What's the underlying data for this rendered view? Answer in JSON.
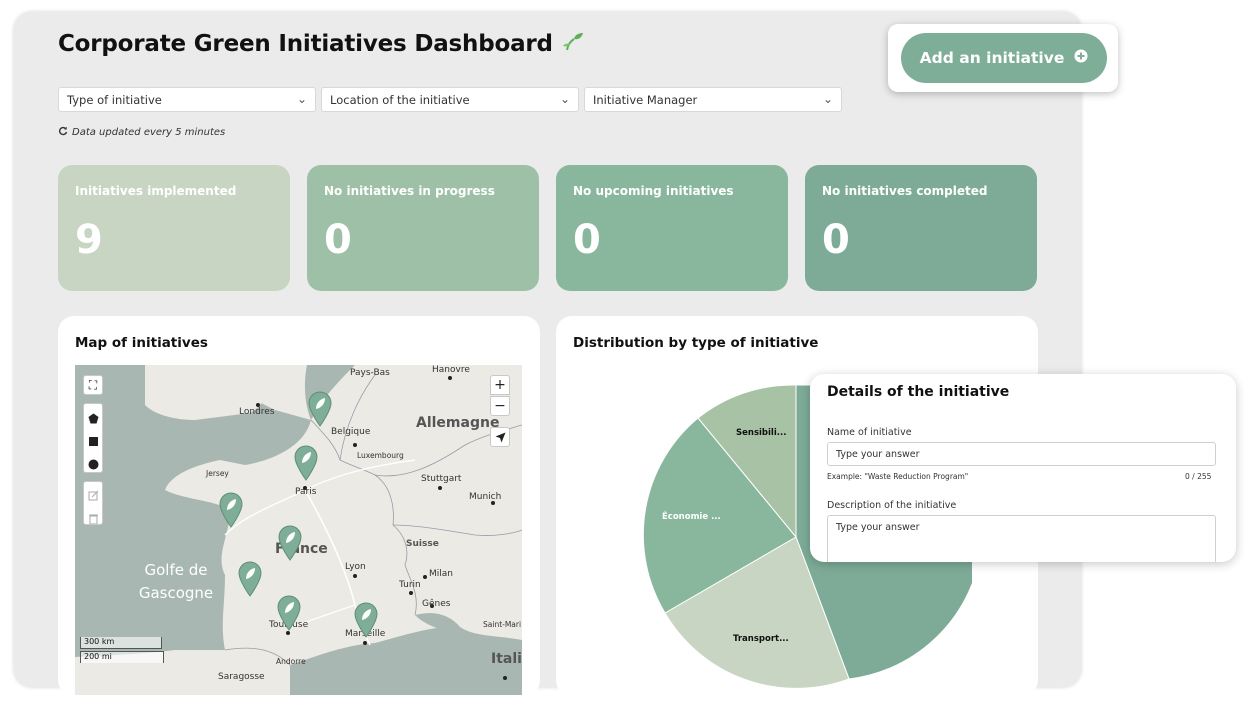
{
  "header": {
    "title": "Corporate Green Initiatives Dashboard",
    "icon": "sprout-icon"
  },
  "actions": {
    "add_label": "Add an initiative",
    "add_icon": "plus-circle-icon"
  },
  "filters": [
    {
      "label": "Type of initiative"
    },
    {
      "label": "Location of the initiative"
    },
    {
      "label": "Initiative Manager"
    }
  ],
  "status": {
    "updated_text": "Data updated every 5 minutes"
  },
  "kpis": [
    {
      "label": "Initiatives implemented",
      "value": "9",
      "color": "#c8d5c2"
    },
    {
      "label": "No initiatives in progress",
      "value": "0",
      "color": "#9ec0a6"
    },
    {
      "label": "No upcoming initiatives",
      "value": "0",
      "color": "#89b79d"
    },
    {
      "label": "No initiatives completed",
      "value": "0",
      "color": "#7dab98"
    }
  ],
  "map": {
    "title": "Map of initiatives",
    "labels": {
      "londres": "Londres",
      "paysbas": "Pays-Bas",
      "hanovre": "Hanovre",
      "belgique": "Belgique",
      "allemagne": "Allemagne",
      "luxembourg": "Luxembourg",
      "jersey": "Jersey",
      "paris": "Paris",
      "stuttgart": "Stuttgart",
      "munich": "Munich",
      "france": "France",
      "suisse": "Suisse",
      "lyon": "Lyon",
      "milan": "Milan",
      "turin": "Turin",
      "genes": "Gênes",
      "toulouse": "Toulouse",
      "marseille": "Marseille",
      "saintmarin": "Saint-Mari",
      "andorre": "Andorre",
      "saragosse": "Saragosse",
      "italie": "Italie",
      "golfe1": "Golfe de",
      "golfe2": "Gascogne"
    },
    "scale_km": "300 km",
    "scale_mi": "200 mi"
  },
  "distribution": {
    "title": "Distribution by type of initiative",
    "labels": {
      "sensib": "Sensibili...",
      "eco": "Économie ...",
      "transport": "Transport..."
    }
  },
  "details": {
    "title": "Details of the initiative",
    "name_label": "Name of initiative",
    "name_placeholder": "Type your answer",
    "name_hint": "Example: \"Waste Reduction Program\"",
    "name_counter": "0 / 255",
    "desc_label": "Description of the initiative",
    "desc_placeholder": "Type your answer"
  }
}
